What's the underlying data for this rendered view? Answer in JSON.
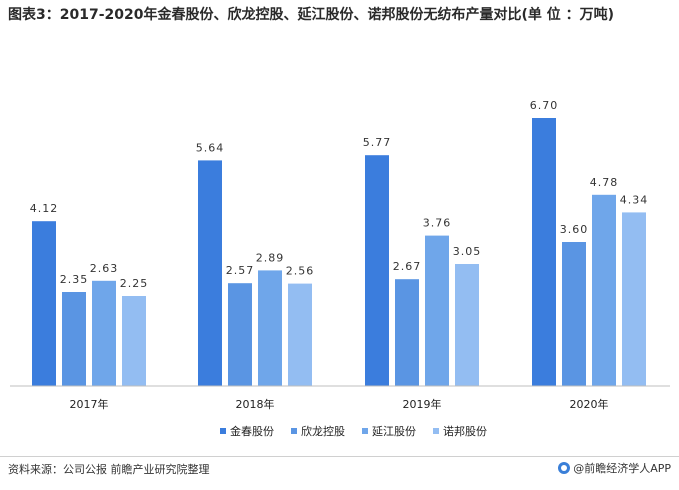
{
  "title": "图表3：2017-2020年金春股份、欣龙控股、延江股份、诺邦股份无纺布产量对比(单 位 ：万吨)",
  "chart_data": {
    "type": "bar",
    "title": "图表3：2017-2020年金春股份、欣龙控股、延江股份、诺邦股份无纺布产量对比(单 位 ：万吨)",
    "categories": [
      "2017年",
      "2018年",
      "2019年",
      "2020年"
    ],
    "series": [
      {
        "name": "金春股份",
        "color": "#3b7ddd",
        "values": [
          4.12,
          5.64,
          5.77,
          6.7
        ]
      },
      {
        "name": "欣龙控股",
        "color": "#5a95e3",
        "values": [
          2.35,
          2.57,
          2.67,
          3.6
        ]
      },
      {
        "name": "延江股份",
        "color": "#6fa6ea",
        "values": [
          2.63,
          2.89,
          3.76,
          4.78
        ]
      },
      {
        "name": "诺邦股份",
        "color": "#93bdf2",
        "values": [
          2.25,
          2.56,
          3.05,
          4.34
        ]
      }
    ],
    "value_labels": [
      [
        "4.12",
        "5.64",
        "5.77",
        "6.70"
      ],
      [
        "2.35",
        "2.57",
        "2.67",
        "3.60"
      ],
      [
        "2.63",
        "2.89",
        "3.76",
        "4.78"
      ],
      [
        "2.25",
        "2.56",
        "3.05",
        "4.34"
      ]
    ],
    "xlabel": "",
    "ylabel": "万吨",
    "ylim": [
      0,
      7.5
    ],
    "grid": false,
    "legend_position": "bottom-right"
  },
  "footer": {
    "source": "资料来源：公司公报 前瞻产业研究院整理",
    "brand": "@前瞻经济学人APP"
  }
}
